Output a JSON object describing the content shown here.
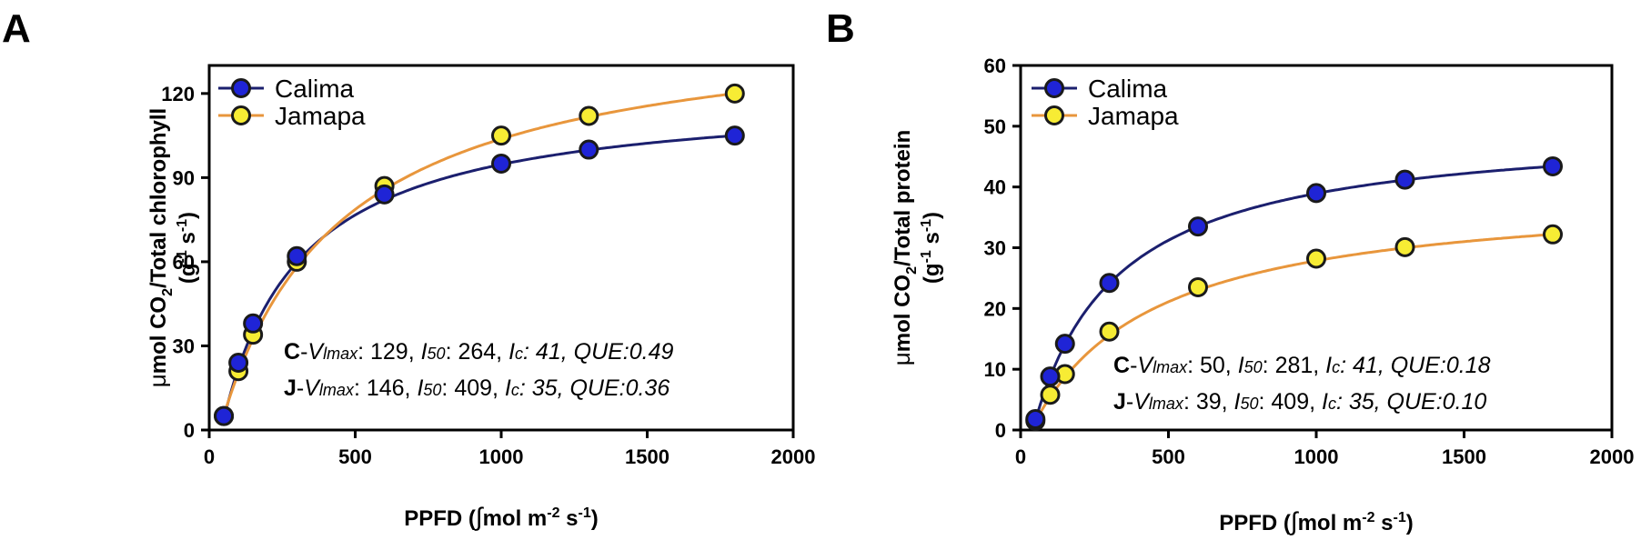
{
  "chart_data": [
    {
      "type": "line",
      "panel_label": "A",
      "title": "",
      "xlabel": "PPFD (∫mol m⁻² s⁻¹)",
      "xlabel_parts": {
        "main": "PPFD (",
        "mu": "∫",
        "unit1": "mol m",
        "exp1": "-2",
        "unit2": " s",
        "exp2": "-1",
        "close": ")"
      },
      "ylabel_line1": {
        "mu": "μ",
        "a": "mol CO",
        "sub": "2",
        "b": "/Total chlorophyll"
      },
      "ylabel_line2": {
        "open": "(g",
        "exp1": "-1",
        "mid": " s",
        "exp2": "-1",
        "close": ")"
      },
      "xlim": [
        0,
        2000
      ],
      "ylim": [
        0,
        130
      ],
      "xticks": [
        0,
        500,
        1000,
        1500,
        2000
      ],
      "yticks": [
        0,
        30,
        60,
        90,
        120
      ],
      "x": [
        50,
        100,
        150,
        300,
        600,
        1000,
        1300,
        1800
      ],
      "series": [
        {
          "name": "Calima",
          "values": [
            5,
            24,
            38,
            62,
            84,
            95,
            100,
            105
          ],
          "color": "#1b1f6e",
          "marker": "#1f24d6",
          "vmax": 129,
          "i50": 264,
          "ic": 41
        },
        {
          "name": "Jamapa",
          "values": [
            5,
            21,
            34,
            60,
            87,
            105,
            112,
            120
          ],
          "color": "#e8963c",
          "marker": "#f7ec34",
          "vmax": 146,
          "i50": 409,
          "ic": 35
        }
      ],
      "legend_position": "top-left",
      "annotations": [
        {
          "bold": "C",
          "dash": "-",
          "v": "V",
          "vsub": "lmax",
          "sep1": ": 129, ",
          "i": "I",
          "isub": "50",
          "sep2": ": 264, ",
          "ic": "I",
          "icsub": "c",
          "rest": ": 41, QUE:0.49"
        },
        {
          "bold": "J",
          "dash": "-",
          "v": "V",
          "vsub": "lmax",
          "sep1": ": 146, ",
          "i": "I",
          "isub": "50",
          "sep2": ": 409, ",
          "ic": "I",
          "icsub": "c",
          "rest": ": 35, QUE:0.36"
        }
      ]
    },
    {
      "type": "line",
      "panel_label": "B",
      "title": "",
      "xlabel": "PPFD (∫mol m⁻² s⁻¹)",
      "xlabel_parts": {
        "main": "PPFD (",
        "mu": "∫",
        "unit1": "mol m",
        "exp1": "-2",
        "unit2": " s",
        "exp2": "-1",
        "close": ")"
      },
      "ylabel_line1": {
        "mu": "μ",
        "a": "mol CO",
        "sub": "2",
        "b": "/Total protein"
      },
      "ylabel_line2": {
        "open": "(g",
        "exp1": "-1",
        "mid": " s",
        "exp2": "-1",
        "close": ")"
      },
      "xlim": [
        0,
        2000
      ],
      "ylim": [
        0,
        60
      ],
      "xticks": [
        0,
        500,
        1000,
        1500,
        2000
      ],
      "yticks": [
        0,
        10,
        20,
        30,
        40,
        50,
        60
      ],
      "x": [
        50,
        100,
        150,
        300,
        600,
        1000,
        1300,
        1800
      ],
      "series": [
        {
          "name": "Calima",
          "values": [
            1.8,
            8.8,
            14.2,
            24.2,
            33.5,
            39,
            41.2,
            43.4
          ],
          "color": "#1b1f6e",
          "marker": "#1f24d6",
          "vmax": 50,
          "i50": 281,
          "ic": 41
        },
        {
          "name": "Jamapa",
          "values": [
            1.5,
            5.8,
            9.2,
            16.2,
            23.5,
            28.2,
            30.1,
            32.2
          ],
          "color": "#e8963c",
          "marker": "#f7ec34",
          "vmax": 39,
          "i50": 409,
          "ic": 35
        }
      ],
      "legend_position": "top-left",
      "annotations": [
        {
          "bold": "C",
          "dash": "-",
          "v": "V",
          "vsub": "lmax",
          "sep1": ": 50, ",
          "i": "I",
          "isub": "50",
          "sep2": ": 281, ",
          "ic": "I",
          "icsub": "c",
          "rest": ": 41, QUE:0.18"
        },
        {
          "bold": "J",
          "dash": "-",
          "v": "V",
          "vsub": "lmax",
          "sep1": ": 39, ",
          "i": "I",
          "isub": "50",
          "sep2": ": 409, ",
          "ic": "I",
          "icsub": "c",
          "rest": ": 35, QUE:0.10"
        }
      ]
    }
  ]
}
